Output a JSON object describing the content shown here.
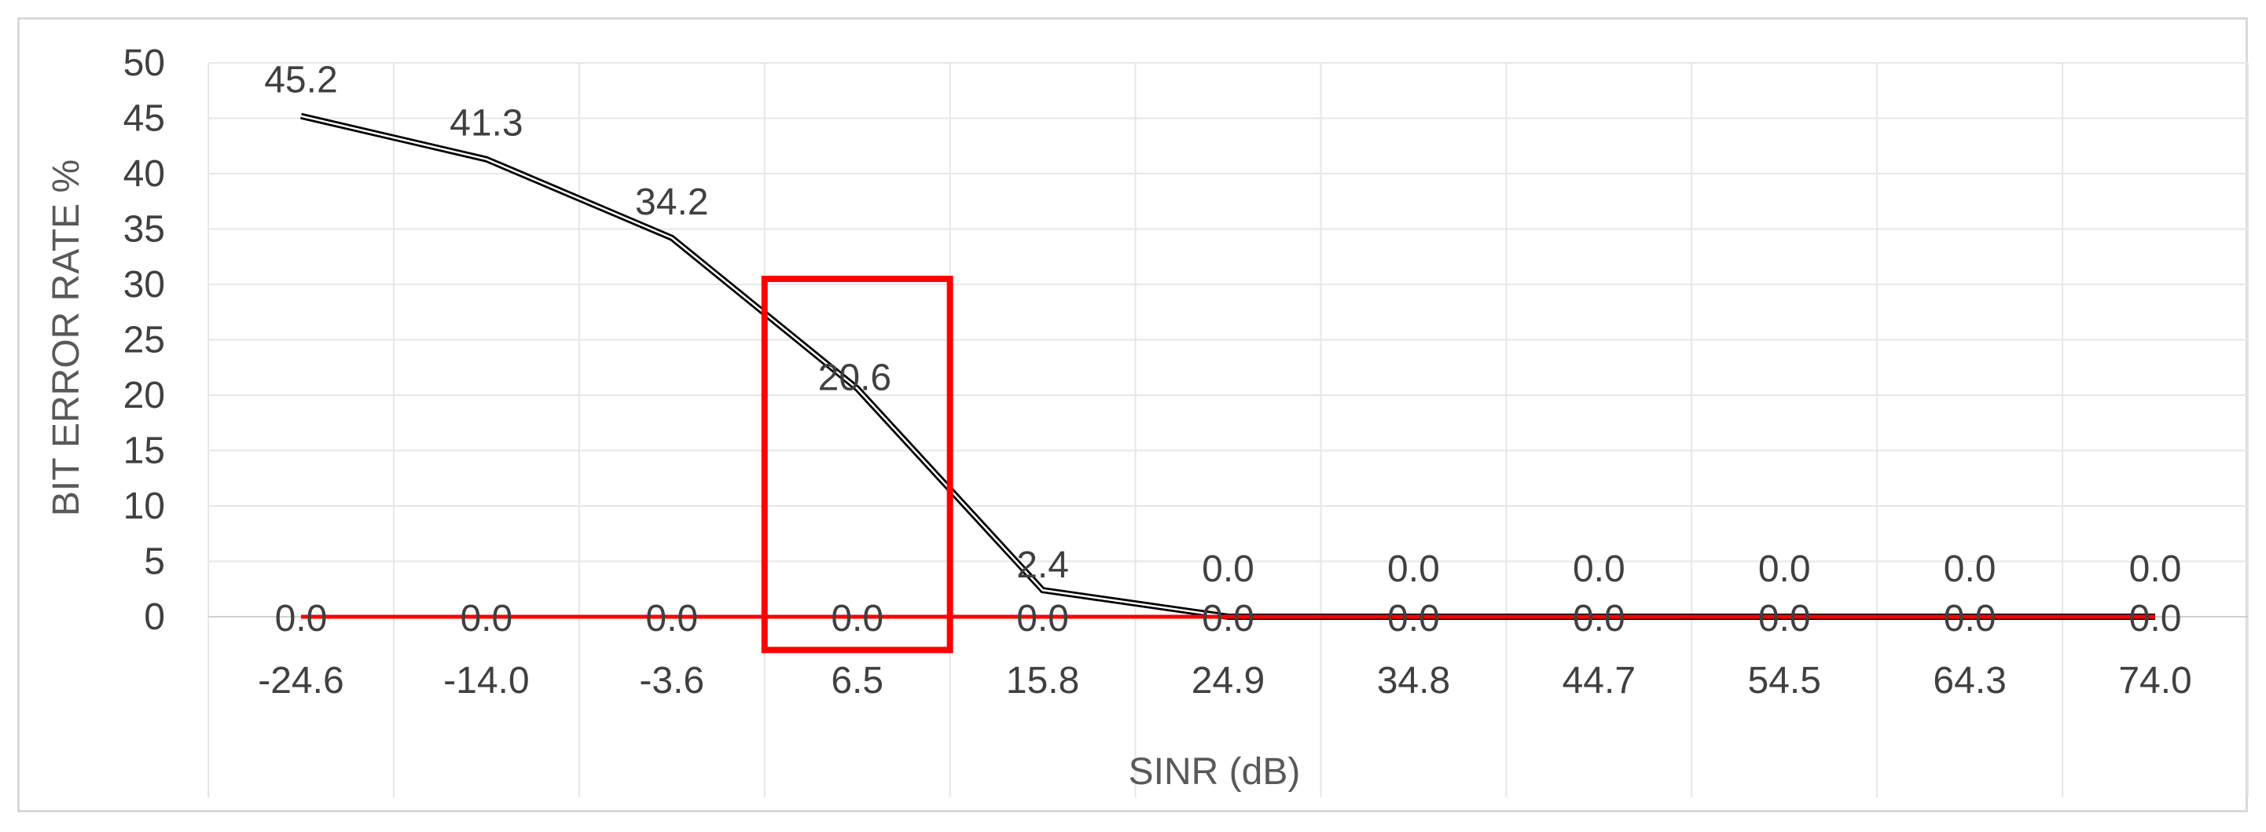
{
  "chart_data": {
    "type": "line",
    "title": "",
    "xlabel": "SINR (dB)",
    "ylabel": "BIT ERROR RATE %",
    "categories": [
      "-24.6",
      "-14.0",
      "-3.6",
      "6.5",
      "15.8",
      "24.9",
      "34.8",
      "44.7",
      "54.5",
      "64.3",
      "74.0"
    ],
    "ylim": [
      0,
      50
    ],
    "yticks": [
      0,
      5,
      10,
      15,
      20,
      25,
      30,
      35,
      40,
      45,
      50
    ],
    "grid": true,
    "legend": "none",
    "series": [
      {
        "values": [
          45.2,
          41.3,
          34.2,
          20.6,
          2.4,
          0.0,
          0.0,
          0.0,
          0.0,
          0.0,
          0.0
        ],
        "labels": [
          "45.2",
          "41.3",
          "34.2",
          "20.6",
          "2.4",
          "0.0",
          "0.0",
          "0.0",
          "0.0",
          "0.0",
          "0.0"
        ],
        "color": "#000000",
        "style": "double-line"
      },
      {
        "values": [
          0.0,
          0.0,
          0.0,
          0.0,
          0.0,
          0.0,
          0.0,
          0.0,
          0.0,
          0.0,
          0.0
        ],
        "labels": [
          "0.0",
          "0.0",
          "0.0",
          "0.0",
          "0.0",
          "0.0",
          "0.0",
          "0.0",
          "0.0",
          "0.0",
          "0.0"
        ],
        "color": "#ff0000",
        "style": "solid"
      }
    ],
    "annotations": [
      {
        "type": "highlight-box",
        "x_category": "6.5",
        "y_range": [
          -3,
          30.5
        ],
        "color": "#ff0000"
      }
    ]
  }
}
